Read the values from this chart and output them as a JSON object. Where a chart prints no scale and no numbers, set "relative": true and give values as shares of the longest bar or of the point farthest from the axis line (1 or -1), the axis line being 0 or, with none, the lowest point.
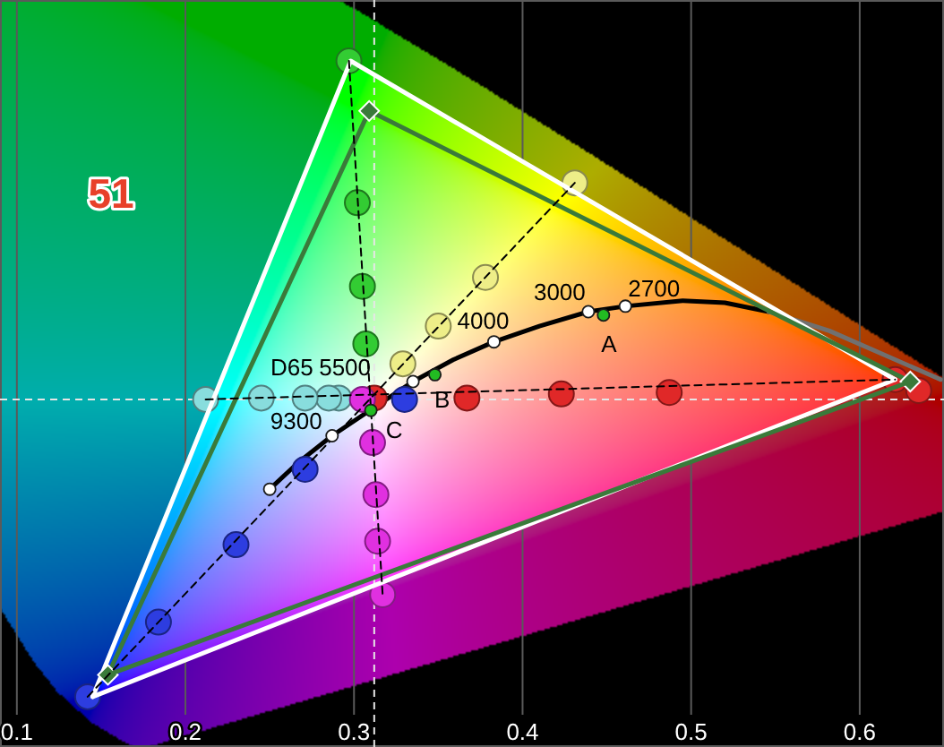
{
  "chart_data": {
    "type": "line",
    "relative": true,
    "xlim": [
      0.09,
      0.65
    ],
    "xticks": [
      0.1,
      0.2,
      0.3,
      0.4,
      0.5,
      0.6
    ],
    "grid": "x",
    "ref_lines": [
      {
        "axis": "x",
        "value": 0.312,
        "color": "#e6e6e6",
        "line_style": "dashed"
      },
      {
        "axis": "y",
        "value": 0.506,
        "color": "#e6e6e6",
        "line_style": "dashed"
      }
    ],
    "annotations": [
      "51",
      {
        "text": "9300",
        "x": 0.287,
        "y": 0.453
      },
      {
        "text": "D65",
        "x": 0.312,
        "y": 0.506
      },
      {
        "text": "5500",
        "x": 0.335,
        "y": 0.532
      },
      {
        "text": "4000",
        "x": 0.383,
        "y": 0.59
      },
      {
        "text": "3000",
        "x": 0.439,
        "y": 0.634
      },
      {
        "text": "2700",
        "x": 0.461,
        "y": 0.642
      },
      {
        "text": "A",
        "x": 0.448,
        "y": 0.629
      },
      {
        "text": "B",
        "x": 0.348,
        "y": 0.542
      },
      {
        "text": "C",
        "x": 0.31,
        "y": 0.49
      }
    ],
    "series": [
      {
        "color": "#000000",
        "x": [
          0.25,
          0.267,
          0.287,
          0.313,
          0.335,
          0.359,
          0.383,
          0.41,
          0.439,
          0.461,
          0.495,
          0.52,
          0.546
        ],
        "values": [
          0.375,
          0.414,
          0.453,
          0.496,
          0.532,
          0.564,
          0.59,
          0.613,
          0.634,
          0.642,
          0.65,
          0.647,
          0.634
        ]
      },
      {
        "color": "#707070",
        "x": [
          0.546,
          0.582,
          0.648
        ],
        "values": [
          0.634,
          0.606,
          0.535
        ]
      },
      {
        "type": "scatter",
        "marker": "circle",
        "color": "#e02828",
        "x": [
          0.312,
          0.367,
          0.423,
          0.487,
          0.621,
          0.635
        ],
        "values": [
          0.508,
          0.508,
          0.514,
          0.516,
          0.535,
          0.519
        ]
      },
      {
        "type": "scatter",
        "marker": "circle",
        "color": "#33cc33",
        "x": [
          0.307,
          0.305,
          0.302,
          0.297
        ],
        "values": [
          0.587,
          0.671,
          0.793,
          1
        ]
      },
      {
        "type": "scatter",
        "marker": "circle",
        "color": "#2d3de0",
        "x": [
          0.33,
          0.271,
          0.23,
          0.184,
          0.142
        ],
        "values": [
          0.506,
          0.404,
          0.294,
          0.181,
          0.072
        ]
      },
      {
        "type": "scatter",
        "marker": "circle",
        "color": "#eeee88",
        "x": [
          0.329,
          0.35,
          0.378,
          0.431
        ],
        "values": [
          0.558,
          0.613,
          0.684,
          0.822
        ]
      },
      {
        "type": "scatter",
        "marker": "circle",
        "color": "#88dddd",
        "x": [
          0.291,
          0.285,
          0.271,
          0.245,
          0.212
        ],
        "values": [
          0.508,
          0.508,
          0.508,
          0.508,
          0.506
        ]
      },
      {
        "type": "scatter",
        "marker": "circle",
        "color": "#e030e0",
        "x": [
          0.305,
          0.311,
          0.313,
          0.314,
          0.317
        ],
        "values": [
          0.506,
          0.443,
          0.367,
          0.299,
          0.221
        ]
      },
      {
        "color": "#ffffff",
        "x": [
          0.145,
          0.298,
          0.621
        ],
        "values": [
          0.072,
          1,
          0.535
        ]
      },
      {
        "color": "#ffffff",
        "x": [
          0.145,
          0.621
        ],
        "values": [
          0.072,
          0.535
        ]
      },
      {
        "color": "#3a7a3a",
        "marker": "diamond",
        "x": [
          0.154,
          0.309,
          0.63
        ],
        "values": [
          0.104,
          0.927,
          0.532
        ]
      },
      {
        "color": "#3a7a3a",
        "x": [
          0.154,
          0.63
        ],
        "values": [
          0.104,
          0.532
        ]
      },
      {
        "color": "#000000",
        "line_style": "dashed",
        "x": [
          0.297,
          0.317
        ],
        "values": [
          1,
          0.221
        ]
      },
      {
        "color": "#000000",
        "line_style": "dashed",
        "x": [
          0.212,
          0.621
        ],
        "values": [
          0.506,
          0.535
        ]
      },
      {
        "color": "#000000",
        "line_style": "dashed",
        "x": [
          0.142,
          0.431
        ],
        "values": [
          0.072,
          0.822
        ]
      },
      {
        "type": "bubble",
        "color": "#ffffff",
        "x": [
          0.25,
          0.287,
          0.335,
          0.383,
          0.439,
          0.461
        ],
        "values": [
          0.375,
          0.453,
          0.532,
          0.59,
          0.634,
          0.642
        ],
        "sizes": [
          1,
          1,
          1,
          1,
          1,
          1
        ]
      },
      {
        "type": "bubble",
        "color": "#22bb22",
        "x": [
          0.448,
          0.348,
          0.31
        ],
        "values": [
          0.629,
          0.542,
          0.49
        ],
        "sizes": [
          1,
          1,
          1
        ]
      }
    ]
  }
}
